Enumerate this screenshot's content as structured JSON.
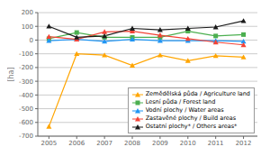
{
  "chart_data": {
    "type": "line",
    "x": [
      2005,
      2006,
      2007,
      2008,
      2009,
      2010,
      2011,
      2012
    ],
    "xlim": [
      2004.6,
      2012.5
    ],
    "xticks": [
      2005,
      2006,
      2007,
      2008,
      2009,
      2010,
      2011,
      2012
    ],
    "ylim": [
      -700,
      200
    ],
    "yticks": [
      -700,
      -600,
      -500,
      -400,
      -300,
      -200,
      -100,
      0,
      100,
      200
    ],
    "ylabel": "[ha]",
    "grid": true,
    "legend": "lower right",
    "series": [
      {
        "name": "Zemědělská půda / Agriculture land",
        "color": "#FFA500",
        "marker": "triangle",
        "values": [
          -630,
          -100,
          -110,
          -185,
          -110,
          -150,
          -115,
          -125
        ]
      },
      {
        "name": "Lesní půda / Forest land",
        "color": "#4CAF50",
        "marker": "square",
        "values": [
          10,
          55,
          20,
          20,
          20,
          65,
          30,
          40
        ]
      },
      {
        "name": "Vodní plochy / Water areas",
        "color": "#2196F3",
        "marker": "triangle",
        "values": [
          -5,
          5,
          -10,
          5,
          -5,
          -5,
          -5,
          -10
        ]
      },
      {
        "name": "Zastavěné plochy / Build areas",
        "color": "#F44336",
        "marker": "triangle",
        "values": [
          25,
          5,
          60,
          65,
          35,
          10,
          -15,
          -35
        ]
      },
      {
        "name": "Ostatní plochy* / Others areas*",
        "color": "#1a1a1a",
        "marker": "triangle",
        "values": [
          100,
          20,
          30,
          85,
          75,
          85,
          95,
          140
        ]
      }
    ]
  }
}
